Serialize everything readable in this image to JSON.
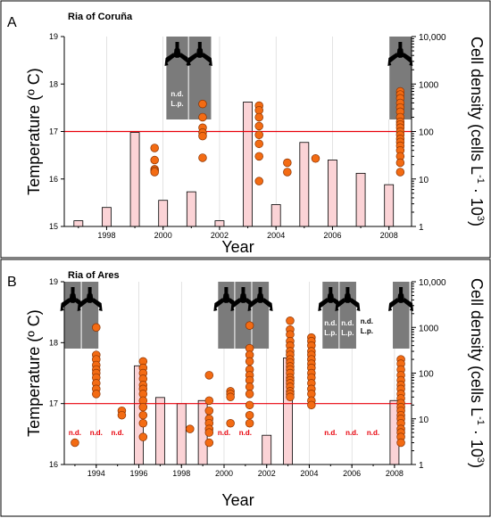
{
  "chart_data": [
    {
      "type": "bar",
      "panel_letter": "A",
      "title": "Ria of Coruña",
      "xlabel": "Year",
      "ylabel": "Temperature (º C)",
      "ylabel_right_prefix": "Cell density (cells L",
      "ylabel_right_sup": "-1",
      "ylabel_right_mid": " · 10",
      "ylabel_right_sup2": "3",
      "ylabel_right_suffix": ")",
      "xlim": [
        1996.5,
        2008.8
      ],
      "ylim": [
        15,
        19
      ],
      "y2lim": [
        1,
        10000
      ],
      "y2scale": "log",
      "x_ticks": [
        1998,
        2000,
        2002,
        2004,
        2006,
        2008
      ],
      "x_ticklabels": [
        "1998",
        "2000",
        "2002",
        "2004",
        "2006",
        "2008"
      ],
      "y_ticks": [
        15,
        16,
        17,
        18,
        19
      ],
      "y_ticklabels": [
        "15",
        "16",
        "17",
        "18",
        "19"
      ],
      "y2_ticks": [
        1,
        10,
        100,
        1000,
        10000
      ],
      "y2_ticklabels": [
        "1",
        "10",
        "100",
        "1000",
        "10,000"
      ],
      "threshold": 17,
      "bars": {
        "name": "Temperature",
        "x": [
          1997,
          1998,
          1999,
          2000,
          2001,
          2002,
          2003,
          2004,
          2005,
          2006,
          2007,
          2008
        ],
        "values": [
          15.12,
          15.4,
          16.98,
          15.55,
          15.73,
          15.12,
          17.62,
          15.46,
          16.77,
          16.4,
          16.12,
          15.88
        ]
      },
      "points": [
        {
          "x": 1999.7,
          "values": [
            45,
            25,
            16,
            15,
            14
          ]
        },
        {
          "x": 2001.4,
          "values": [
            380,
            200,
            120,
            95,
            80,
            28
          ]
        },
        {
          "x": 2003.4,
          "values": [
            350,
            280,
            200,
            130,
            85,
            55,
            30,
            9
          ]
        },
        {
          "x": 2004.4,
          "values": [
            22,
            14
          ]
        },
        {
          "x": 2005.4,
          "values": [
            27
          ]
        },
        {
          "x": 2008.4,
          "values": [
            700,
            600,
            500,
            400,
            320,
            260,
            200,
            160,
            140,
            120,
            100,
            85,
            70,
            60,
            50,
            40,
            30,
            22,
            14
          ]
        }
      ],
      "grey_boxes": [
        {
          "x_start": 2000.1,
          "x_end": 2000.9,
          "line1": "n.d.",
          "line2": "L.p."
        },
        {
          "x_start": 2000.9,
          "x_end": 2001.7,
          "line1": "",
          "line2": ""
        },
        {
          "x_start": 2008.0,
          "x_end": 2008.8,
          "line1": "",
          "line2": ""
        }
      ],
      "text_labels": [],
      "colors": {
        "bar_fill": "#fbd3d6",
        "dot_fill": "#f36b13",
        "threshold": "#e8000a",
        "grey_box": "#7b7b7b"
      }
    },
    {
      "type": "bar",
      "panel_letter": "B",
      "title": "Ria of Ares",
      "xlabel": "Year",
      "ylabel": "Temperature (º C)",
      "ylabel_right_prefix": "Cell density (cells L",
      "ylabel_right_sup": "-1",
      "ylabel_right_mid": " · 10",
      "ylabel_right_sup2": "3",
      "ylabel_right_suffix": ")",
      "xlim": [
        1992.5,
        2008.8
      ],
      "ylim": [
        16,
        19
      ],
      "y2lim": [
        1,
        10000
      ],
      "y2scale": "log",
      "x_ticks": [
        1994,
        1996,
        1998,
        2000,
        2002,
        2004,
        2006,
        2008
      ],
      "x_ticklabels": [
        "1994",
        "1996",
        "1998",
        "2000",
        "2002",
        "2004",
        "2006",
        "2008"
      ],
      "y_ticks": [
        16,
        17,
        18,
        19
      ],
      "y_ticklabels": [
        "16",
        "17",
        "18",
        "19"
      ],
      "y2_ticks": [
        1,
        10,
        100,
        1000,
        10000
      ],
      "y2_ticklabels": [
        "1",
        "10",
        "100",
        "1000",
        "10,000"
      ],
      "threshold": 17,
      "bars": {
        "name": "Temperature",
        "x": [
          1996,
          1997,
          1998,
          1999,
          2002,
          2003,
          2008
        ],
        "values": [
          17.62,
          17.1,
          17.0,
          17.05,
          16.48,
          17.75,
          17.05
        ]
      },
      "points": [
        {
          "x": 1993.0,
          "values": [
            3
          ]
        },
        {
          "x": 1994.0,
          "values": [
            1000,
            250,
            200,
            150,
            120,
            100,
            80,
            60,
            45,
            35
          ]
        },
        {
          "x": 1995.2,
          "values": [
            15,
            12
          ]
        },
        {
          "x": 1996.2,
          "values": [
            180,
            130,
            100,
            75,
            55,
            45,
            35,
            25,
            18,
            12,
            8,
            4
          ]
        },
        {
          "x": 1998.4,
          "values": [
            6
          ]
        },
        {
          "x": 1999.3,
          "values": [
            90,
            25,
            15,
            10,
            8,
            6,
            5,
            3
          ]
        },
        {
          "x": 2000.3,
          "values": [
            40,
            35,
            30,
            8
          ]
        },
        {
          "x": 2001.2,
          "values": [
            1100,
            350,
            250,
            180,
            120,
            90,
            70,
            50,
            35,
            20,
            12,
            8
          ]
        },
        {
          "x": 2003.1,
          "values": [
            1400,
            900,
            700,
            500,
            400,
            300,
            250,
            200,
            170,
            140,
            120,
            100,
            80,
            70,
            60,
            50,
            40,
            35,
            30
          ]
        },
        {
          "x": 2004.1,
          "values": [
            600,
            500,
            400,
            300,
            250,
            200,
            160,
            130,
            100,
            80,
            60,
            45,
            35,
            25,
            20
          ]
        },
        {
          "x": 2008.3,
          "values": [
            200,
            160,
            120,
            90,
            70,
            55,
            45,
            35,
            28,
            22,
            18,
            15,
            12,
            10,
            8,
            6,
            5,
            4,
            3
          ]
        }
      ],
      "grey_boxes": [
        {
          "x_start": 1992.5,
          "x_end": 1993.3,
          "line1": "",
          "line2": ""
        },
        {
          "x_start": 1993.3,
          "x_end": 1994.1,
          "line1": "",
          "line2": ""
        },
        {
          "x_start": 1999.7,
          "x_end": 2000.5,
          "line1": "",
          "line2": ""
        },
        {
          "x_start": 2000.5,
          "x_end": 2001.3,
          "line1": "",
          "line2": ""
        },
        {
          "x_start": 2001.3,
          "x_end": 2002.1,
          "line1": "",
          "line2": ""
        },
        {
          "x_start": 2004.6,
          "x_end": 2005.4,
          "line1": "n.d.",
          "line2": "L.p."
        },
        {
          "x_start": 2005.4,
          "x_end": 2006.2,
          "line1": "n.d.",
          "line2": "L.p."
        },
        {
          "x_start": 2007.9,
          "x_end": 2008.7,
          "line1": "",
          "line2": ""
        }
      ],
      "text_labels": [
        {
          "x": 2006.7,
          "line1": "n.d.",
          "line2": "L.p.",
          "color": "black"
        },
        {
          "x": 1993.0,
          "line1": "n.d.",
          "line2": "",
          "color": "red"
        },
        {
          "x": 1994.0,
          "line1": "n.d.",
          "line2": "",
          "color": "red"
        },
        {
          "x": 1995.0,
          "line1": "n.d.",
          "line2": "",
          "color": "red"
        },
        {
          "x": 2000.0,
          "line1": "n.d.",
          "line2": "",
          "color": "red"
        },
        {
          "x": 2001.0,
          "line1": "n.d.",
          "line2": "",
          "color": "red"
        },
        {
          "x": 2005.0,
          "line1": "n.d.",
          "line2": "",
          "color": "red"
        },
        {
          "x": 2006.0,
          "line1": "n.d.",
          "line2": "",
          "color": "red"
        },
        {
          "x": 2007.0,
          "line1": "n.d.",
          "line2": "",
          "color": "red"
        }
      ],
      "colors": {
        "bar_fill": "#fbd3d6",
        "dot_fill": "#f36b13",
        "threshold": "#e8000a",
        "grey_box": "#7b7b7b"
      }
    }
  ]
}
